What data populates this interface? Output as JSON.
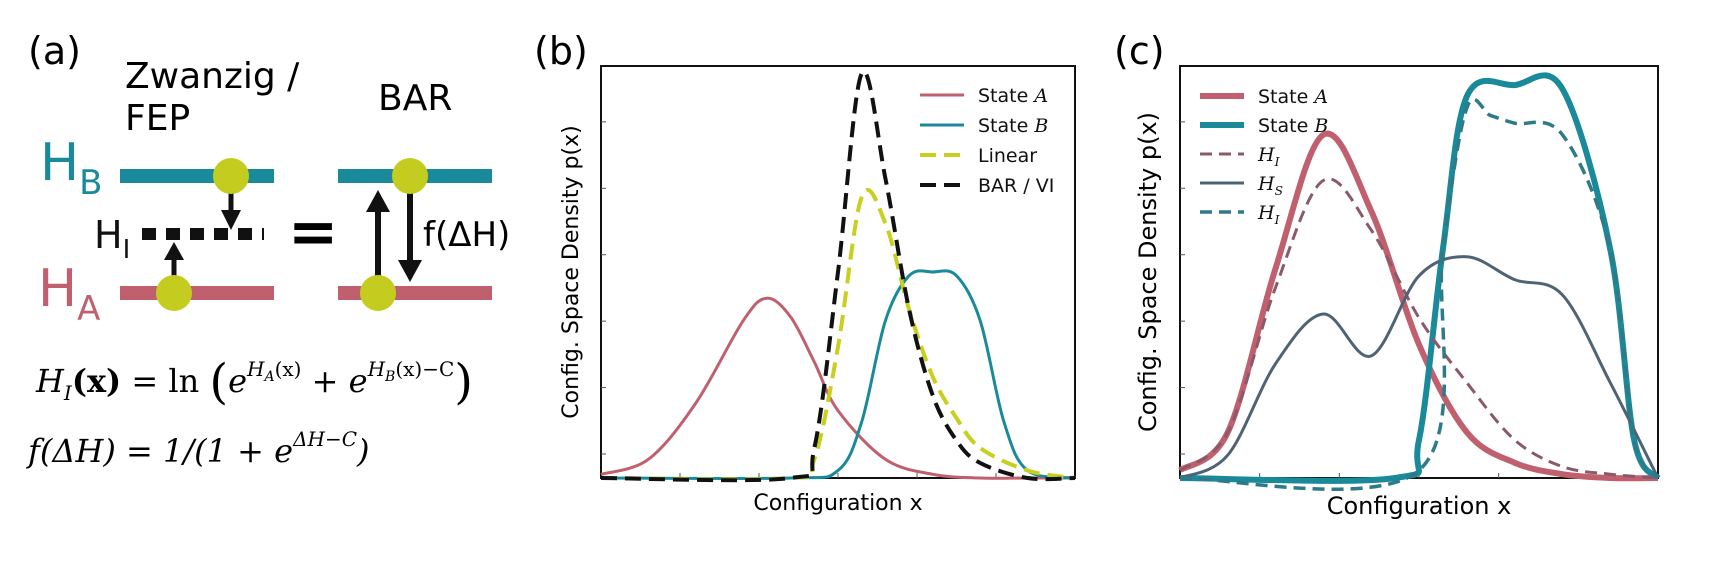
{
  "colors": {
    "stateA": "#c0606e",
    "stateB": "#1a8a9a",
    "linear": "#c8cf1e",
    "bar": "#111111",
    "hi_a": "#8a5a6a",
    "hs": "#4e6475",
    "hi_b": "#2f7a88",
    "ball": "#c4cc20"
  },
  "panel_a": {
    "label": "(a)",
    "col1_title_line1": "Zwanzig /",
    "col1_title_line2": "FEP",
    "col2_title": "BAR",
    "hb_main": "H",
    "hb_sub": "B",
    "ha_main": "H",
    "ha_sub": "A",
    "hi_main": "H",
    "hi_sub": "I",
    "equals": "=",
    "f_label": "f(ΔH)",
    "eq1_lhs": "H",
    "eq1_lhs_sub": "I",
    "eq1_arg": "(x)",
    "eq1_mid": " = ln ",
    "eq1_e1": "e",
    "eq1_exp1": "H",
    "eq1_exp1_sub": "A",
    "eq1_exp1_arg": "(x)",
    "eq1_plus": " + ",
    "eq1_e2": "e",
    "eq1_exp2": "H",
    "eq1_exp2_sub": "B",
    "eq1_exp2_arg": "(x)−C",
    "eq2_lhs": "f(ΔH) = 1/(1 + e",
    "eq2_exp": "ΔH−C",
    "eq2_close": ")"
  },
  "panel_b": {
    "label": "(b)",
    "xlabel": "Configuration x",
    "ylabel": "Config. Space Density p(x)",
    "legend": [
      {
        "text": "State ",
        "ital": "A"
      },
      {
        "text": "State ",
        "ital": "B"
      },
      {
        "text": "Linear",
        "ital": ""
      },
      {
        "text": "BAR / VI",
        "ital": ""
      }
    ]
  },
  "panel_c": {
    "label": "(c)",
    "xlabel": "Configuration x",
    "ylabel": "Config. Space Density p(x)",
    "legend": [
      {
        "text": "State ",
        "ital": "A",
        "sub": ""
      },
      {
        "text": "State ",
        "ital": "B",
        "sub": ""
      },
      {
        "text": "",
        "ital": "H",
        "sub": "I"
      },
      {
        "text": "",
        "ital": "H",
        "sub": "S"
      },
      {
        "text": "",
        "ital": "H",
        "sub": "I"
      }
    ]
  },
  "chart_data": [
    {
      "type": "line",
      "title": "(b)",
      "xlabel": "Configuration x",
      "ylabel": "Config. Space Density p(x)",
      "xlim": [
        0,
        10
      ],
      "ylim": [
        0,
        1.1
      ],
      "grid": false,
      "legend_position": "top-right",
      "series": [
        {
          "name": "State A",
          "style": "solid",
          "x": [
            0,
            1,
            2,
            3,
            3.5,
            4,
            4.5,
            5,
            6,
            7,
            8,
            9,
            10
          ],
          "y": [
            0.01,
            0.05,
            0.2,
            0.42,
            0.48,
            0.43,
            0.31,
            0.18,
            0.05,
            0.01,
            0,
            0,
            0
          ]
        },
        {
          "name": "State B",
          "style": "solid",
          "x": [
            0,
            4,
            5,
            5.5,
            6,
            6.5,
            7,
            7.5,
            8,
            8.5,
            9,
            10
          ],
          "y": [
            0,
            0,
            0.02,
            0.15,
            0.42,
            0.54,
            0.55,
            0.54,
            0.42,
            0.15,
            0.02,
            0
          ]
        },
        {
          "name": "Linear",
          "style": "dashed",
          "x": [
            0,
            4,
            4.5,
            5,
            5.5,
            6,
            6.5,
            7,
            7.5,
            8,
            9,
            10
          ],
          "y": [
            0,
            0,
            0.05,
            0.35,
            0.75,
            0.68,
            0.45,
            0.27,
            0.16,
            0.08,
            0.02,
            0
          ]
        },
        {
          "name": "BAR / VI",
          "style": "dashed",
          "x": [
            0,
            4,
            4.5,
            5,
            5.5,
            6,
            6.5,
            7,
            7.5,
            8,
            9,
            10
          ],
          "y": [
            0,
            0,
            0.08,
            0.55,
            1.08,
            0.8,
            0.45,
            0.22,
            0.1,
            0.04,
            0,
            0
          ]
        }
      ]
    },
    {
      "type": "line",
      "title": "(c)",
      "xlabel": "Configuration x",
      "ylabel": "Config. Space Density p(x)",
      "xlim": [
        0,
        10
      ],
      "ylim": [
        0,
        1.08
      ],
      "grid": false,
      "legend_position": "top-left",
      "series": [
        {
          "name": "State A",
          "style": "solid",
          "x": [
            0,
            1,
            2,
            3,
            4,
            5,
            6,
            7,
            8,
            9,
            10
          ],
          "y": [
            0.02,
            0.12,
            0.55,
            0.9,
            0.7,
            0.35,
            0.12,
            0.04,
            0.01,
            0,
            0
          ]
        },
        {
          "name": "State B",
          "style": "solid",
          "x": [
            0,
            4.5,
            5,
            5.5,
            6,
            7,
            8,
            9,
            9.5,
            10
          ],
          "y": [
            0,
            0,
            0.1,
            0.6,
            1.0,
            1.03,
            1.02,
            0.6,
            0.1,
            0
          ]
        },
        {
          "name": "H_I (A)",
          "style": "dashed",
          "x": [
            0,
            1,
            2,
            3,
            4,
            5,
            6,
            7,
            8,
            9,
            10
          ],
          "y": [
            0.02,
            0.12,
            0.5,
            0.78,
            0.65,
            0.42,
            0.25,
            0.1,
            0.03,
            0.01,
            0
          ]
        },
        {
          "name": "H_S",
          "style": "solid",
          "x": [
            0,
            1,
            2,
            3,
            4,
            5,
            6,
            7,
            8,
            9,
            10
          ],
          "y": [
            0,
            0.06,
            0.3,
            0.43,
            0.32,
            0.53,
            0.58,
            0.52,
            0.48,
            0.25,
            0
          ]
        },
        {
          "name": "H_I (B)",
          "style": "dashed",
          "x": [
            0,
            5,
            5.5,
            6,
            6.5,
            7,
            8,
            9,
            9.5,
            10
          ],
          "y": [
            0,
            0.02,
            0.6,
            0.97,
            0.95,
            0.93,
            0.9,
            0.6,
            0.1,
            0
          ]
        }
      ]
    }
  ]
}
